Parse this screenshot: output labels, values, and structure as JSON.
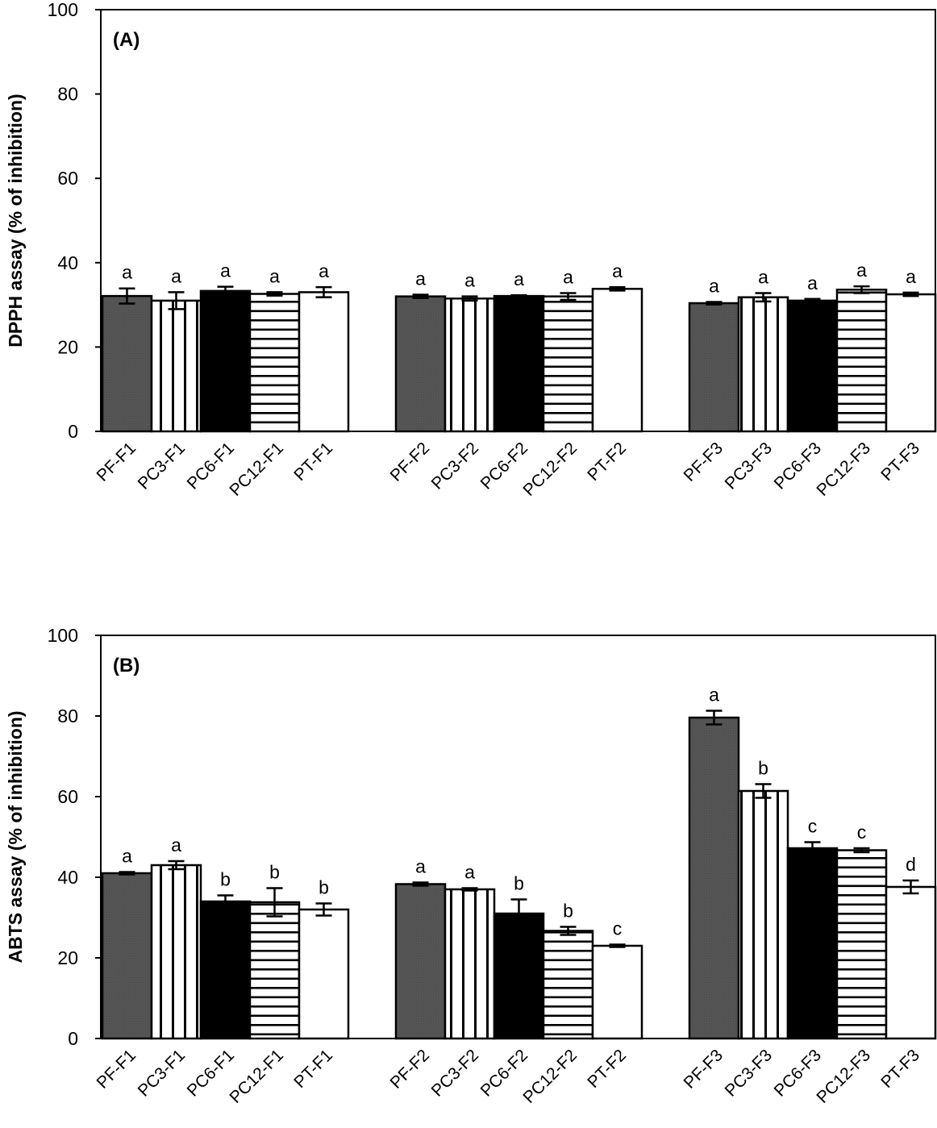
{
  "chart_data": [
    {
      "type": "bar",
      "panel_label": "(A)",
      "ylabel": "DPPH assay (% of inhibition)",
      "ylim": [
        0,
        100
      ],
      "yticks": [
        0,
        20,
        40,
        60,
        80,
        100
      ],
      "grid": false,
      "groups": [
        {
          "categories": [
            "PF-F1",
            "PC3-F1",
            "PC6-F1",
            "PC12-F1",
            "PT-F1"
          ],
          "values": [
            32.1,
            31.0,
            33.3,
            32.6,
            33.0
          ],
          "errors": [
            1.8,
            2.0,
            1.0,
            0.4,
            1.2
          ],
          "letters": [
            "a",
            "a",
            "a",
            "a",
            "a"
          ]
        },
        {
          "categories": [
            "PF-F2",
            "PC3-F2",
            "PC6-F2",
            "PC12-F2",
            "PT-F2"
          ],
          "values": [
            32.0,
            31.5,
            32.1,
            32.0,
            33.8
          ],
          "errors": [
            0.4,
            0.5,
            0.2,
            0.8,
            0.4
          ],
          "letters": [
            "a",
            "a",
            "a",
            "a",
            "a"
          ]
        },
        {
          "categories": [
            "PF-F3",
            "PC3-F3",
            "PC6-F3",
            "PC12-F3",
            "PT-F3"
          ],
          "values": [
            30.4,
            31.8,
            31.0,
            33.6,
            32.5
          ],
          "errors": [
            0.3,
            1.0,
            0.4,
            0.8,
            0.4
          ],
          "letters": [
            "a",
            "a",
            "a",
            "a",
            "a"
          ]
        }
      ]
    },
    {
      "type": "bar",
      "panel_label": "(B)",
      "ylabel": "ABTS assay (% of inhibition)",
      "ylim": [
        0,
        100
      ],
      "yticks": [
        0,
        20,
        40,
        60,
        80,
        100
      ],
      "grid": false,
      "groups": [
        {
          "categories": [
            "PF-F1",
            "PC3-F1",
            "PC6-F1",
            "PC12-F1",
            "PT-F1"
          ],
          "values": [
            41.0,
            43.0,
            34.0,
            33.8,
            32.0
          ],
          "errors": [
            0.3,
            1.0,
            1.5,
            3.5,
            1.5
          ],
          "letters": [
            "a",
            "a",
            "b",
            "b",
            "b"
          ]
        },
        {
          "categories": [
            "PF-F2",
            "PC3-F2",
            "PC6-F2",
            "PC12-F2",
            "PT-F2"
          ],
          "values": [
            38.3,
            37.0,
            31.0,
            26.7,
            23.0
          ],
          "errors": [
            0.4,
            0.3,
            3.5,
            1.0,
            0.3
          ],
          "letters": [
            "a",
            "a",
            "b",
            "b",
            "c"
          ]
        },
        {
          "categories": [
            "PF-F3",
            "PC3-F3",
            "PC6-F3",
            "PC12-F3",
            "PT-F3"
          ],
          "values": [
            79.6,
            61.4,
            47.2,
            46.7,
            37.6
          ],
          "errors": [
            1.7,
            1.7,
            1.5,
            0.5,
            1.6
          ],
          "letters": [
            "a",
            "b",
            "c",
            "c",
            "d"
          ]
        }
      ]
    }
  ],
  "colors": {
    "PF": "#555555",
    "PC3": "vertical-stripes",
    "PC6": "#000000",
    "PC12": "horizontal-stripes",
    "PT": "#ffffff"
  }
}
